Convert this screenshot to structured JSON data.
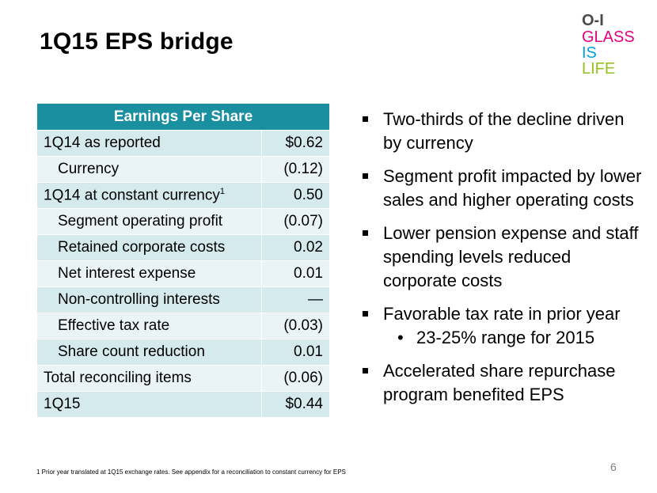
{
  "slide": {
    "title": "1Q15 EPS bridge",
    "page_number": "6",
    "footnote": "1 Prior year translated at 1Q15 exchange rates.  See appendix for a reconciliation to constant currency for EPS"
  },
  "logo": {
    "line1": "O-I",
    "line2": "GLASS",
    "line3": "IS",
    "line4": "LIFE",
    "colors": [
      "#e5007e",
      "#009fe3",
      "#f39200",
      "#95c11f"
    ]
  },
  "table": {
    "header": "Earnings Per Share",
    "header_color": "#1a8fa0",
    "rows": [
      {
        "label": "1Q14 as reported",
        "value": "$0.62",
        "indent": false
      },
      {
        "label": "Currency",
        "value": "(0.12)",
        "indent": true
      },
      {
        "label": "1Q14 at constant currency",
        "superscript": "1",
        "value": "0.50",
        "indent": false
      },
      {
        "label": "Segment operating profit",
        "value": "(0.07)",
        "indent": true
      },
      {
        "label": "Retained corporate costs",
        "value": "0.02",
        "indent": true
      },
      {
        "label": "Net interest expense",
        "value": "0.01",
        "indent": true
      },
      {
        "label": "Non-controlling interests",
        "value": "—",
        "indent": true
      },
      {
        "label": "Effective tax rate",
        "value": "(0.03)",
        "indent": true
      },
      {
        "label": "Share count reduction",
        "value": "0.01",
        "indent": true
      },
      {
        "label": "Total reconciling items",
        "value": "(0.06)",
        "indent": false
      },
      {
        "label": "1Q15",
        "value": "$0.44",
        "indent": false
      }
    ]
  },
  "bullets": [
    {
      "text": "Two-thirds of the decline driven by currency"
    },
    {
      "text": "Segment profit impacted by lower sales and higher operating costs"
    },
    {
      "text": "Lower pension expense and staff spending levels reduced corporate costs"
    },
    {
      "text": "Favorable tax rate in prior year",
      "sub": "23-25% range for 2015"
    },
    {
      "text": "Accelerated share repurchase program benefited EPS"
    }
  ]
}
